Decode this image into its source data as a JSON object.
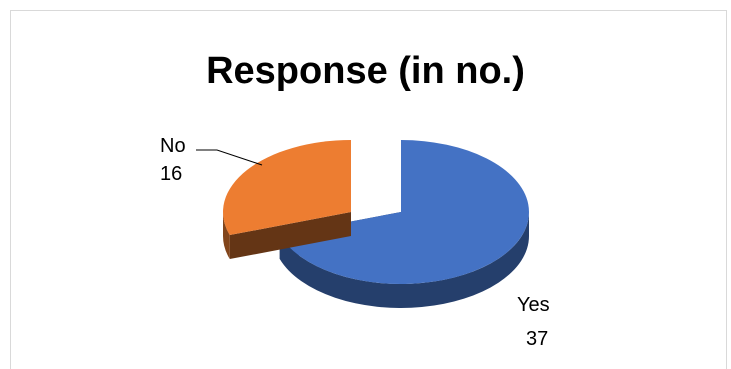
{
  "chart_data": {
    "type": "pie",
    "title": "Response (in no.)",
    "categories": [
      "Yes",
      "No"
    ],
    "values": [
      37,
      16
    ],
    "colors": [
      "#4472c4",
      "#ed7d31"
    ],
    "style": "3d-exploded",
    "legend": "none",
    "labels": [
      {
        "category": "Yes",
        "value": "37"
      },
      {
        "category": "No",
        "value": "16"
      }
    ]
  }
}
